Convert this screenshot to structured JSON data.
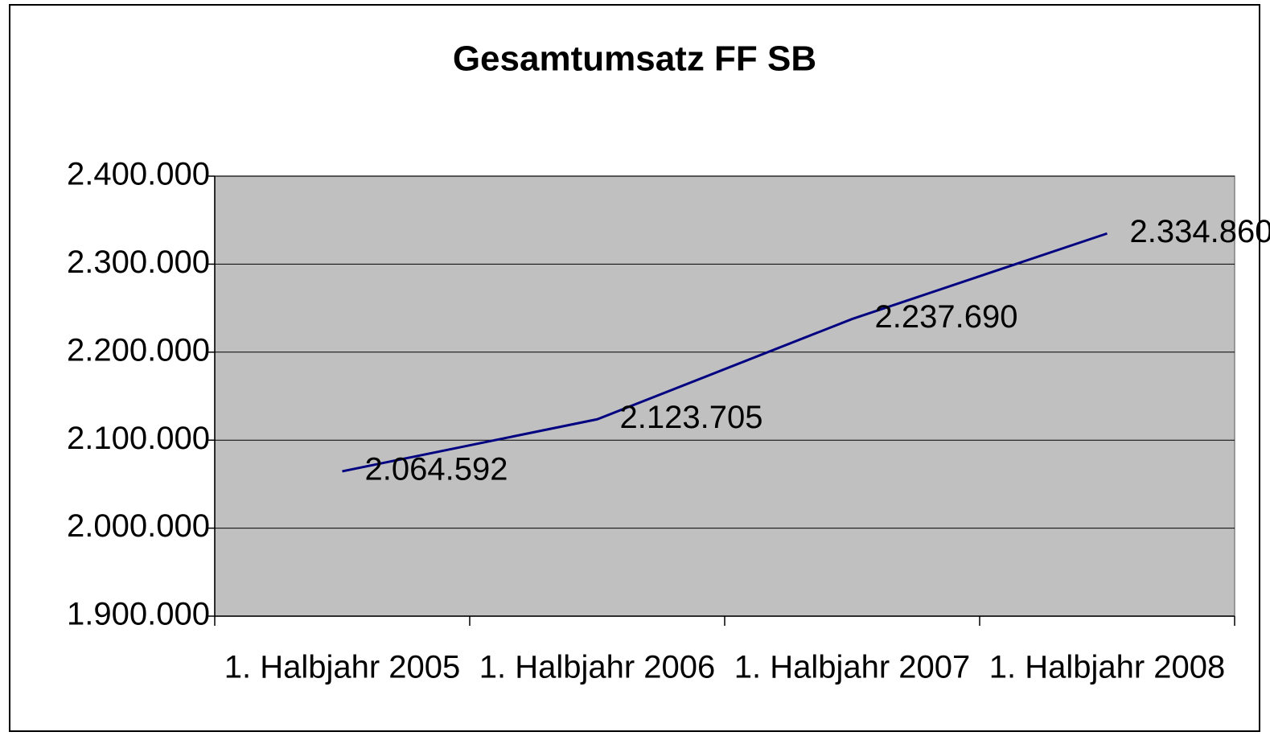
{
  "chart_data": {
    "type": "line",
    "title": "Gesamtumsatz FF SB",
    "categories": [
      "1. Halbjahr 2005",
      "1. Halbjahr 2006",
      "1. Halbjahr 2007",
      "1. Halbjahr 2008"
    ],
    "series": [
      {
        "name": "Gesamtumsatz",
        "color": "#000080",
        "values": [
          2064592,
          2123705,
          2237690,
          2334860
        ],
        "value_labels": [
          "2.064.592",
          "2.123.705",
          "2.237.690",
          "2.334.860"
        ]
      }
    ],
    "ylim": [
      1900000,
      2400000
    ],
    "yticks": [
      {
        "value": 1900000,
        "label": "1.900.000"
      },
      {
        "value": 2000000,
        "label": "2.000.000"
      },
      {
        "value": 2100000,
        "label": "2.100.000"
      },
      {
        "value": 2200000,
        "label": "2.200.000"
      },
      {
        "value": 2300000,
        "label": "2.300.000"
      },
      {
        "value": 2400000,
        "label": "2.400.000"
      }
    ],
    "grid": true,
    "plot_background": "#c0c0c0"
  }
}
